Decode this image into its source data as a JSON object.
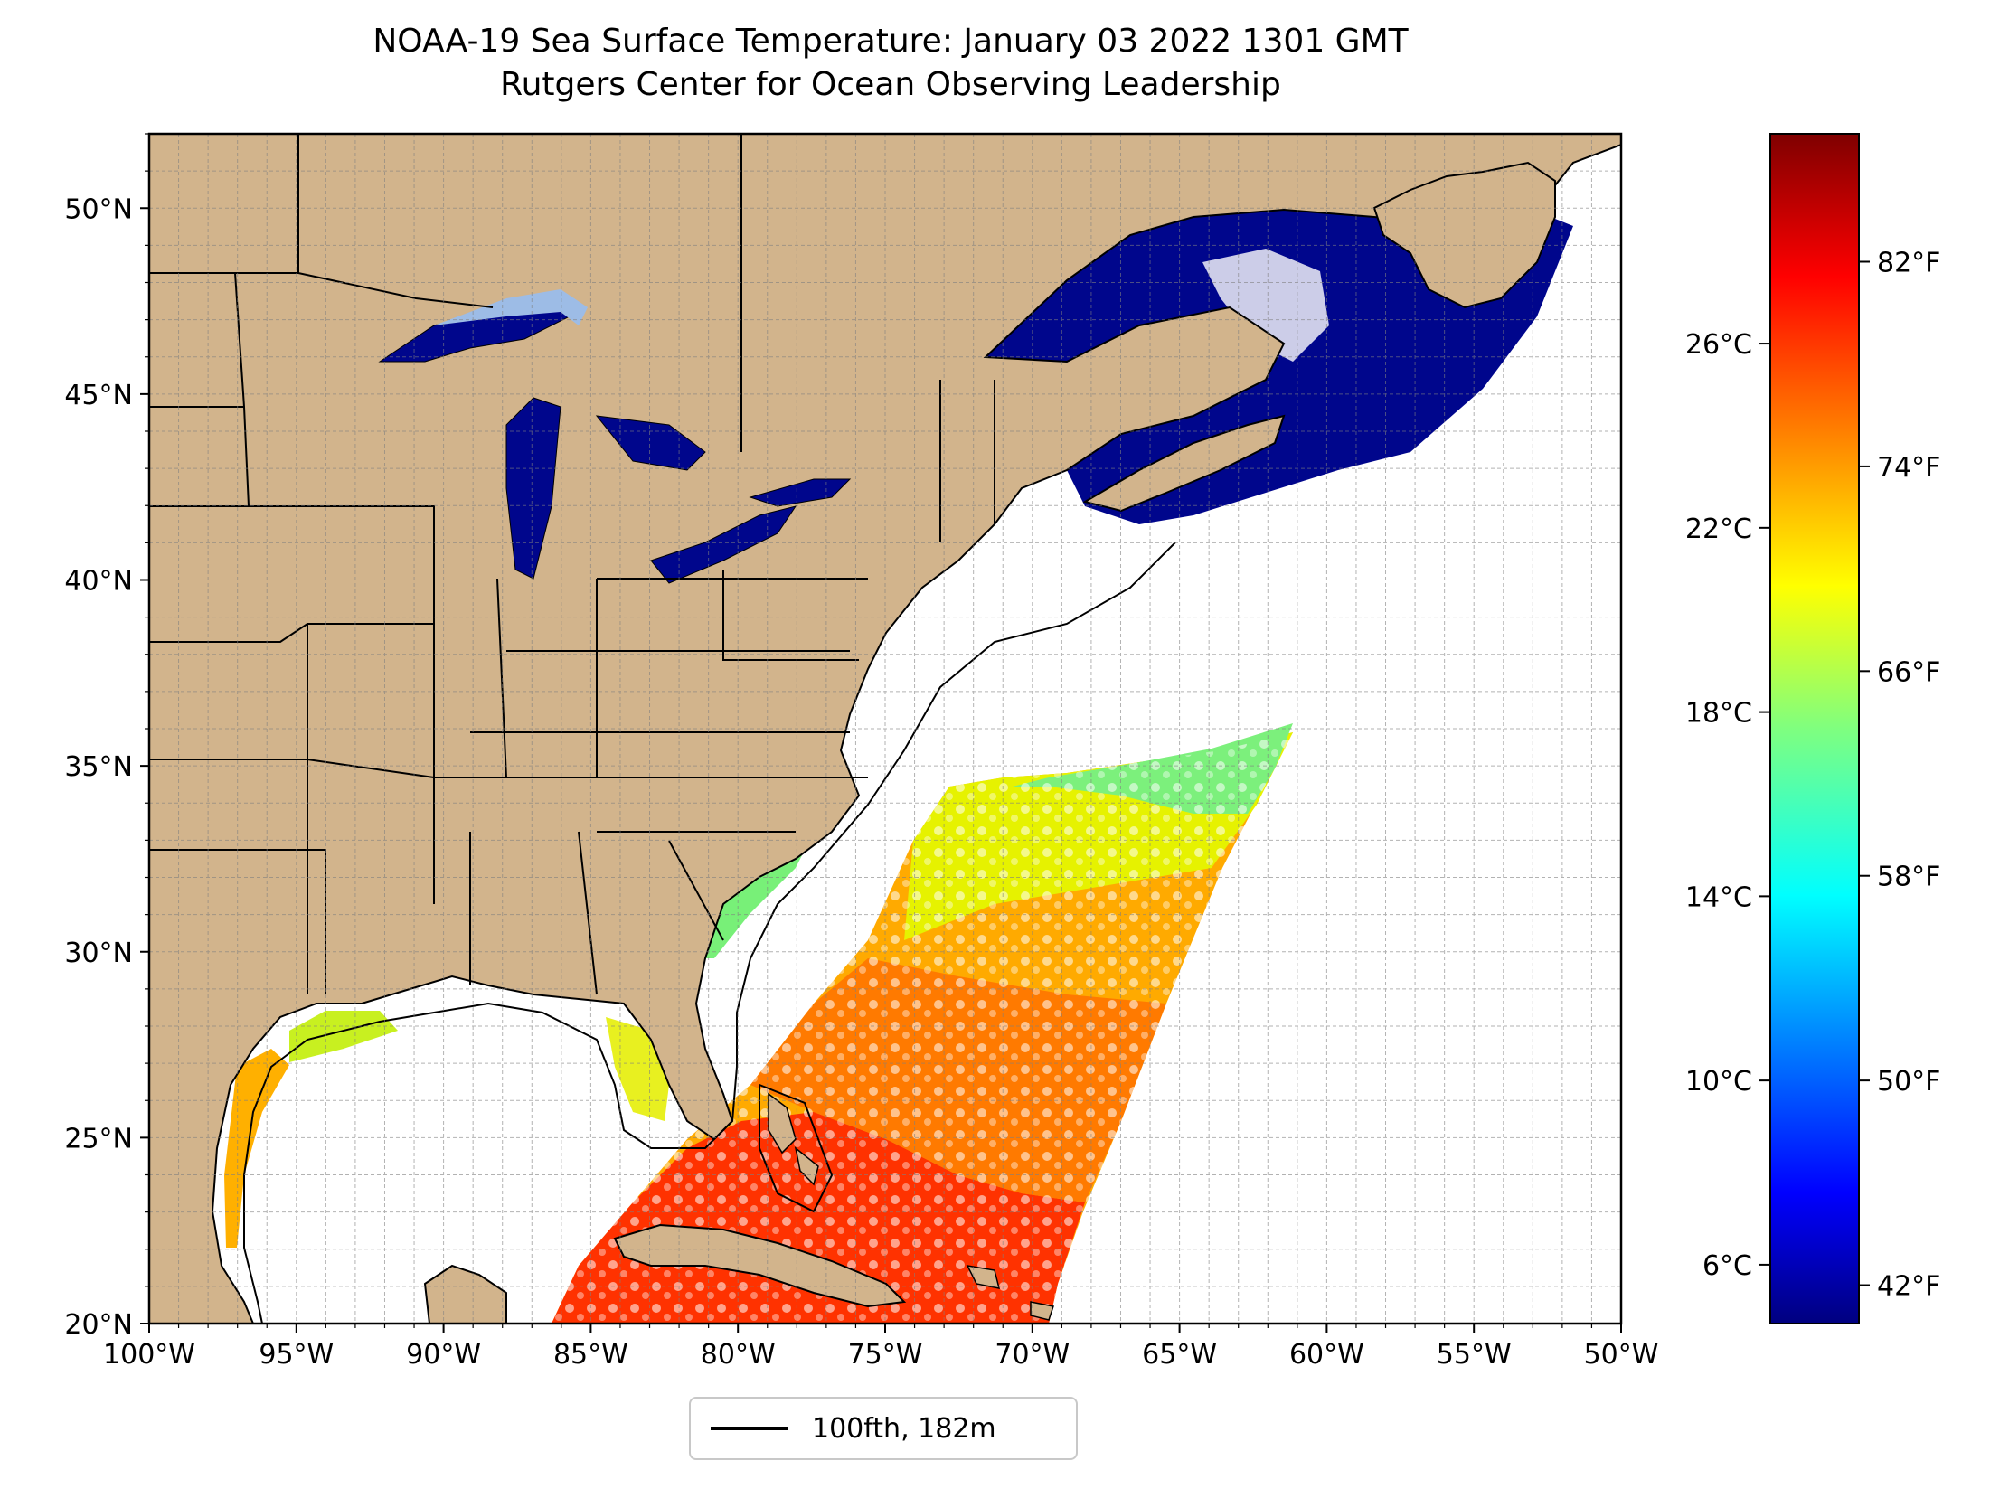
{
  "title": "NOAA-19 Sea Surface Temperature: January 03 2022 1301 GMT",
  "subtitle": "Rutgers Center for Ocean Observing Leadership",
  "map": {
    "lon_range": [
      -100,
      -50
    ],
    "lat_range": [
      20,
      52
    ],
    "x_ticks": [
      "100°W",
      "95°W",
      "90°W",
      "85°W",
      "80°W",
      "75°W",
      "70°W",
      "65°W",
      "60°W",
      "55°W",
      "50°W"
    ],
    "y_ticks": [
      "20°N",
      "25°N",
      "30°N",
      "35°N",
      "40°N",
      "45°N",
      "50°N"
    ],
    "grid": true,
    "land_color": "#d2b48c",
    "colormap": "jet"
  },
  "colorbar": {
    "celsius_ticks": [
      "6°C",
      "10°C",
      "14°C",
      "18°C",
      "22°C",
      "26°C"
    ],
    "fahrenheit_ticks": [
      "42°F",
      "50°F",
      "58°F",
      "66°F",
      "74°F",
      "82°F"
    ],
    "celsius_values": [
      6,
      10,
      14,
      18,
      22,
      26
    ],
    "fahrenheit_values": [
      42,
      50,
      58,
      66,
      74,
      82
    ],
    "range_f": [
      40.5,
      87
    ]
  },
  "legend": {
    "label": "100fth, 182m",
    "line_color": "#000000"
  }
}
